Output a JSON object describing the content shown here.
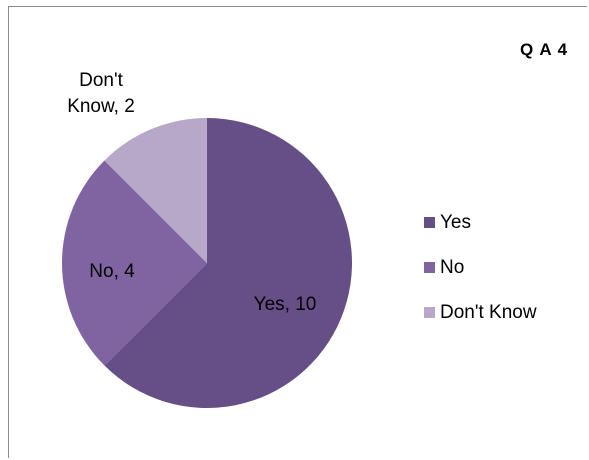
{
  "chart_data": {
    "type": "pie",
    "title": "Q A 4",
    "categories": [
      "Yes",
      "No",
      "Don't Know"
    ],
    "values": [
      10,
      4,
      2
    ],
    "colors": [
      "#664e86",
      "#8064a2",
      "#b7a8ca"
    ],
    "data_labels": [
      "Yes, 10",
      "No, 4",
      "Don't Know, 2"
    ],
    "legend": {
      "position": "right",
      "entries": [
        "Yes",
        "No",
        "Don't Know"
      ]
    }
  }
}
